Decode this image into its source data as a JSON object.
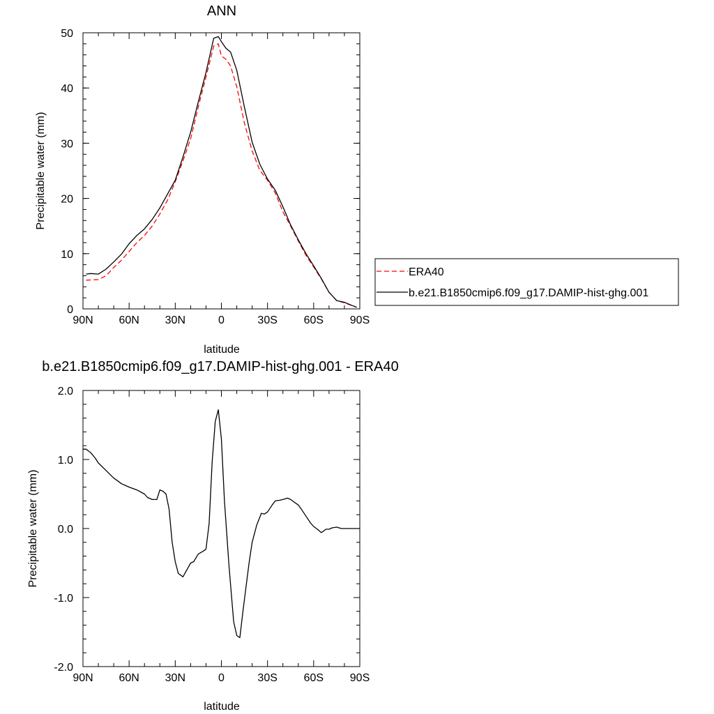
{
  "chart_data": [
    {
      "type": "line",
      "title": "ANN",
      "xlabel": "latitude",
      "ylabel": "Precipitable water (mm)",
      "xlim": [
        90,
        -90
      ],
      "ylim": [
        0,
        50
      ],
      "xticks": [
        {
          "value": 90,
          "label": "90N"
        },
        {
          "value": 60,
          "label": "60N"
        },
        {
          "value": 30,
          "label": "30N"
        },
        {
          "value": 0,
          "label": "0"
        },
        {
          "value": -30,
          "label": "30S"
        },
        {
          "value": -60,
          "label": "60S"
        },
        {
          "value": -90,
          "label": "90S"
        }
      ],
      "yticks": [
        {
          "value": 0,
          "label": "0"
        },
        {
          "value": 10,
          "label": "10"
        },
        {
          "value": 20,
          "label": "20"
        },
        {
          "value": 30,
          "label": "30"
        },
        {
          "value": 40,
          "label": "40"
        },
        {
          "value": 50,
          "label": "50"
        }
      ],
      "legend": {
        "position": "right"
      },
      "series": [
        {
          "name": "ERA40",
          "color": "#ff0000",
          "dash": true,
          "x": [
            88,
            80,
            75,
            70,
            65,
            60,
            55,
            50,
            45,
            40,
            35,
            30,
            25,
            20,
            15,
            10,
            5,
            2,
            0,
            -3,
            -6,
            -10,
            -15,
            -20,
            -25,
            -30,
            -35,
            -40,
            -45,
            -50,
            -55,
            -60,
            -65,
            -70,
            -75,
            -80,
            -85,
            -88
          ],
          "y": [
            5.2,
            5.3,
            6.0,
            7.5,
            8.8,
            10.4,
            12.0,
            13.3,
            15.0,
            17.2,
            19.7,
            23.0,
            26.8,
            30.8,
            36.6,
            42.0,
            47.6,
            48.0,
            45.8,
            45.2,
            44.0,
            40.2,
            33.6,
            28.6,
            25.1,
            23.3,
            21.0,
            17.6,
            15.0,
            12.3,
            9.7,
            7.6,
            5.4,
            3.0,
            1.5,
            1.1,
            0.6,
            0.3
          ]
        },
        {
          "name": "b.e21.B1850cmip6.f09_g17.DAMIP-hist-ghg.001",
          "color": "#000000",
          "dash": false,
          "x": [
            88,
            85,
            80,
            75,
            70,
            65,
            60,
            55,
            50,
            45,
            40,
            35,
            30,
            25,
            20,
            15,
            10,
            5,
            2,
            0,
            -3,
            -6,
            -10,
            -15,
            -20,
            -25,
            -30,
            -35,
            -40,
            -45,
            -50,
            -55,
            -60,
            -65,
            -70,
            -75,
            -80,
            -85,
            -88
          ],
          "y": [
            6.3,
            6.4,
            6.3,
            7.2,
            8.5,
            9.9,
            11.8,
            13.3,
            14.5,
            16.2,
            18.3,
            20.8,
            23.3,
            27.5,
            32.0,
            37.5,
            42.8,
            49.0,
            49.3,
            48.4,
            47.2,
            46.5,
            43.2,
            36.5,
            30.2,
            26.2,
            23.5,
            21.5,
            18.5,
            15.2,
            12.5,
            10.0,
            7.8,
            5.5,
            3.0,
            1.5,
            1.2,
            0.6,
            0.3
          ]
        }
      ]
    },
    {
      "type": "line",
      "title": "b.e21.B1850cmip6.f09_g17.DAMIP-hist-ghg.001 - ERA40",
      "xlabel": "latitude",
      "ylabel": "Precipitable water (mm)",
      "xlim": [
        90,
        -90
      ],
      "ylim": [
        -2.0,
        2.0
      ],
      "xticks": [
        {
          "value": 90,
          "label": "90N"
        },
        {
          "value": 60,
          "label": "60N"
        },
        {
          "value": 30,
          "label": "30N"
        },
        {
          "value": 0,
          "label": "0"
        },
        {
          "value": -30,
          "label": "30S"
        },
        {
          "value": -60,
          "label": "60S"
        },
        {
          "value": -90,
          "label": "90S"
        }
      ],
      "yticks": [
        {
          "value": -2.0,
          "label": "-2.0"
        },
        {
          "value": -1.0,
          "label": "-1.0"
        },
        {
          "value": 0.0,
          "label": "0.0"
        },
        {
          "value": 1.0,
          "label": "1.0"
        },
        {
          "value": 2.0,
          "label": "2.0"
        }
      ],
      "series": [
        {
          "color": "#000000",
          "dash": false,
          "x": [
            90,
            88,
            85,
            82,
            80,
            75,
            70,
            68,
            65,
            62,
            60,
            55,
            50,
            48,
            45,
            42,
            40,
            38,
            36,
            34,
            32,
            30,
            28,
            25,
            22,
            20,
            18,
            15,
            12,
            10,
            8,
            6,
            4,
            2,
            0,
            -2,
            -5,
            -8,
            -10,
            -12,
            -14,
            -16,
            -18,
            -20,
            -23,
            -26,
            -28,
            -30,
            -33,
            -35,
            -38,
            -40,
            -43,
            -45,
            -50,
            -52,
            -55,
            -58,
            -60,
            -63,
            -65,
            -68,
            -70,
            -72,
            -75,
            -78,
            -80,
            -85,
            -90
          ],
          "y": [
            1.15,
            1.15,
            1.1,
            1.02,
            0.95,
            0.84,
            0.73,
            0.7,
            0.65,
            0.62,
            0.6,
            0.56,
            0.5,
            0.45,
            0.42,
            0.42,
            0.56,
            0.54,
            0.5,
            0.28,
            -0.2,
            -0.48,
            -0.65,
            -0.7,
            -0.58,
            -0.5,
            -0.48,
            -0.37,
            -0.33,
            -0.3,
            0.07,
            0.97,
            1.55,
            1.72,
            1.3,
            0.4,
            -0.55,
            -1.35,
            -1.55,
            -1.58,
            -1.2,
            -0.85,
            -0.5,
            -0.2,
            0.05,
            0.22,
            0.21,
            0.24,
            0.34,
            0.4,
            0.41,
            0.42,
            0.44,
            0.42,
            0.34,
            0.28,
            0.18,
            0.08,
            0.03,
            -0.02,
            -0.06,
            -0.01,
            -0.01,
            0.01,
            0.02,
            0.0,
            0.0,
            0.0,
            0.0
          ]
        }
      ]
    }
  ]
}
